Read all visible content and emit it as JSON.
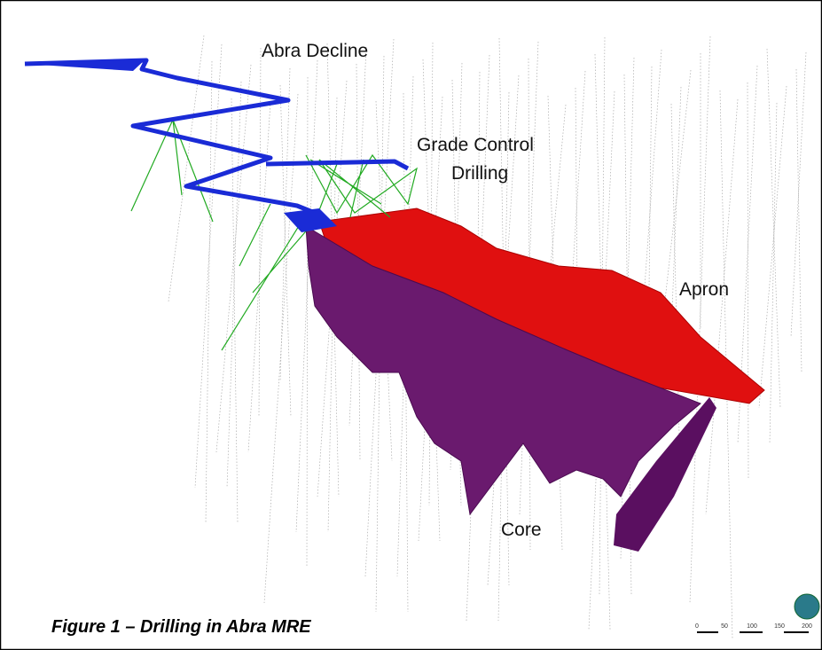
{
  "labels": {
    "decline": "Abra Decline",
    "grade_control": [
      "Grade Control",
      "Drilling"
    ],
    "apron": "Apron",
    "core": "Core"
  },
  "caption": "Figure 1 – Drilling in Abra MRE",
  "scale_bar": [
    "0",
    "50",
    "100",
    "150",
    "200"
  ]
}
